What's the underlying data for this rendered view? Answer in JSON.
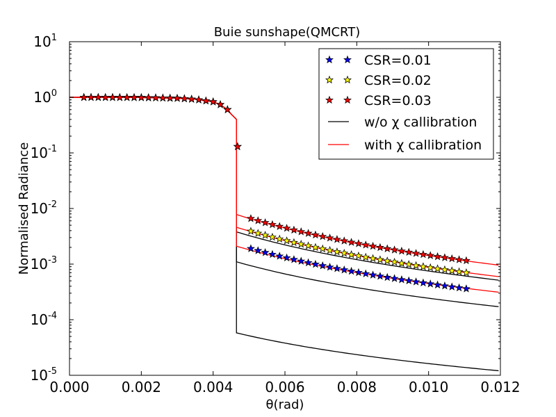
{
  "chart_data": {
    "type": "line",
    "title": "Buie sunshape(QMCRT)",
    "xlabel": "θ(rad)",
    "ylabel": "Normalised Radiance",
    "xlim": [
      0.0,
      0.012
    ],
    "ylim": [
      1e-05,
      10
    ],
    "yscale": "log",
    "x_ticks": [
      "0.000",
      "0.002",
      "0.004",
      "0.006",
      "0.008",
      "0.010",
      "0.012"
    ],
    "y_ticks": [
      {
        "base": "10",
        "exp": "-5"
      },
      {
        "base": "10",
        "exp": "-4"
      },
      {
        "base": "10",
        "exp": "-3"
      },
      {
        "base": "10",
        "exp": "-2"
      },
      {
        "base": "10",
        "exp": "-1"
      },
      {
        "base": "10",
        "exp": "0"
      },
      {
        "base": "10",
        "exp": "1"
      }
    ],
    "legend_position": "top-right",
    "grid": false,
    "disk_edge": 0.00465,
    "disk_points_x": [
      0.0004,
      0.0006,
      0.0008,
      0.001,
      0.0012,
      0.0014,
      0.0016,
      0.0018,
      0.002,
      0.0022,
      0.0024,
      0.0026,
      0.0028,
      0.003,
      0.0032,
      0.0034,
      0.0036,
      0.0038,
      0.004,
      0.0042,
      0.0044
    ],
    "series": [
      {
        "name": "CSR=0.01",
        "kind": "markers",
        "color": "#0000ff",
        "y_at_edge_plus": 0.0019,
        "y_at_end": 0.00035,
        "x_start": 0.00505,
        "x_end": 0.0112
      },
      {
        "name": "CSR=0.02",
        "kind": "markers",
        "color": "#ffff00",
        "y_at_edge_plus": 0.0039,
        "y_at_end": 0.00068,
        "x_start": 0.00505,
        "x_end": 0.0112
      },
      {
        "name": "CSR=0.03",
        "kind": "markers",
        "color": "#ff0000",
        "y_at_edge_plus": 0.0066,
        "y_at_end": 0.00112,
        "x_start": 0.00505,
        "x_end": 0.0112
      },
      {
        "name": "w/o χ callibration",
        "kind": "line",
        "color": "#000000"
      },
      {
        "name": "with χ callibration",
        "kind": "line",
        "color": "#ff0000"
      }
    ],
    "disk_profile": [
      {
        "x": 0.0,
        "y": 1.0
      },
      {
        "x": 0.002,
        "y": 0.99
      },
      {
        "x": 0.003,
        "y": 0.96
      },
      {
        "x": 0.0035,
        "y": 0.92
      },
      {
        "x": 0.004,
        "y": 0.83
      },
      {
        "x": 0.0042,
        "y": 0.74
      },
      {
        "x": 0.0044,
        "y": 0.6
      },
      {
        "x": 0.0045,
        "y": 0.5
      },
      {
        "x": 0.00465,
        "y": 0.4
      }
    ],
    "edge_star": {
      "x": 0.00468,
      "y": 0.13
    },
    "black_lines": [
      {
        "y_start": 5.8e-05,
        "y_end": 1.2e-05
      },
      {
        "y_start": 0.0011,
        "y_end": 0.00017
      },
      {
        "y_start": 0.0038,
        "y_end": 0.00051
      }
    ],
    "red_lines": [
      {
        "y_start": 0.0021,
        "y_end": 0.00031
      },
      {
        "y_start": 0.0046,
        "y_end": 0.00059
      },
      {
        "y_start": 0.0078,
        "y_end": 0.00095
      }
    ]
  }
}
